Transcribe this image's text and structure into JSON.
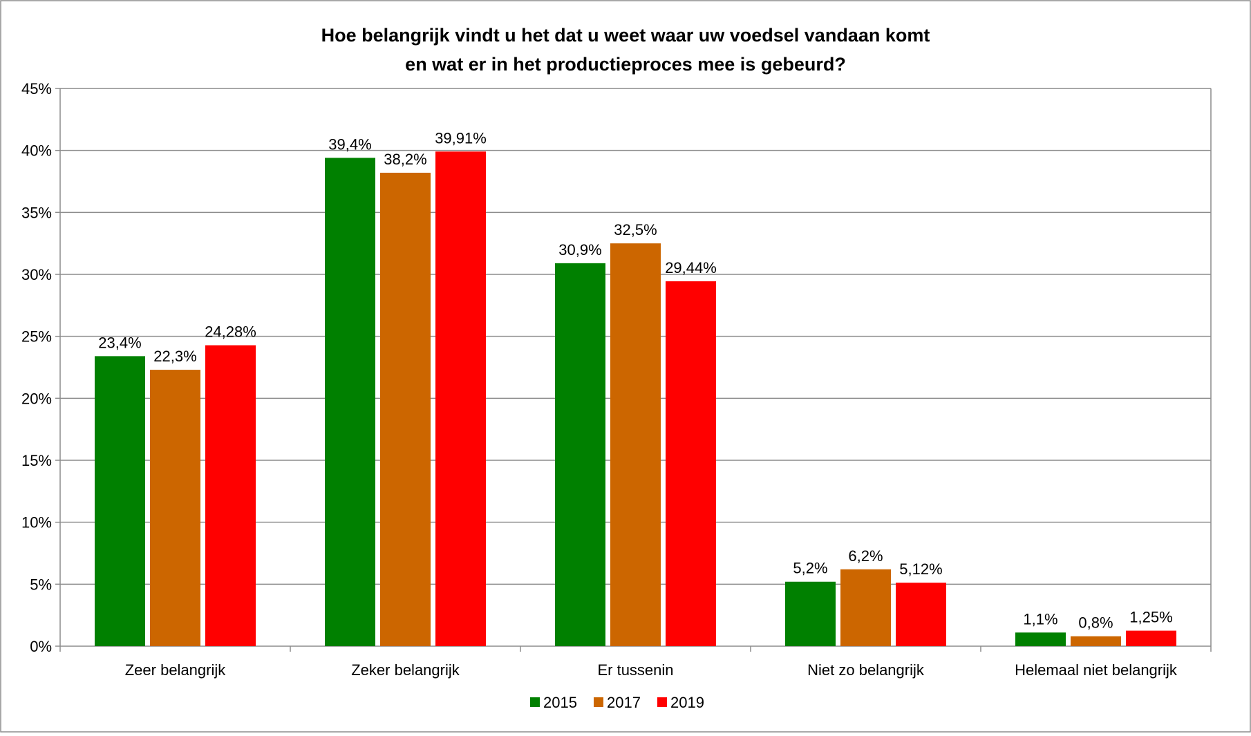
{
  "chart_data": {
    "type": "bar",
    "title_lines": [
      "Hoe belangrijk vindt u het dat u weet waar uw voedsel vandaan komt",
      "en wat er in het productieproces mee is gebeurd?"
    ],
    "categories": [
      "Zeer belangrijk",
      "Zeker belangrijk",
      "Er tussenin",
      "Niet zo belangrijk",
      "Helemaal niet belangrijk"
    ],
    "series": [
      {
        "name": "2015",
        "color": "#008000",
        "values": [
          23.4,
          39.4,
          30.9,
          5.2,
          1.1
        ],
        "labels": [
          "23,4%",
          "39,4%",
          "30,9%",
          "5,2%",
          "1,1%"
        ]
      },
      {
        "name": "2017",
        "color": "#CC6600",
        "values": [
          22.3,
          38.2,
          32.5,
          6.2,
          0.8
        ],
        "labels": [
          "22,3%",
          "38,2%",
          "32,5%",
          "6,2%",
          "0,8%"
        ]
      },
      {
        "name": "2019",
        "color": "#FF0000",
        "values": [
          24.28,
          39.91,
          29.44,
          5.12,
          1.25
        ],
        "labels": [
          "24,28%",
          "39,91%",
          "29,44%",
          "5,12%",
          "1,25%"
        ]
      }
    ],
    "yticks": [
      0,
      5,
      10,
      15,
      20,
      25,
      30,
      35,
      40,
      45
    ],
    "ytick_labels": [
      "0%",
      "5%",
      "10%",
      "15%",
      "20%",
      "25%",
      "30%",
      "35%",
      "40%",
      "45%"
    ],
    "ylim": [
      0,
      45
    ],
    "grid": true,
    "legend_position": "bottom",
    "xlabel": "",
    "ylabel": ""
  }
}
